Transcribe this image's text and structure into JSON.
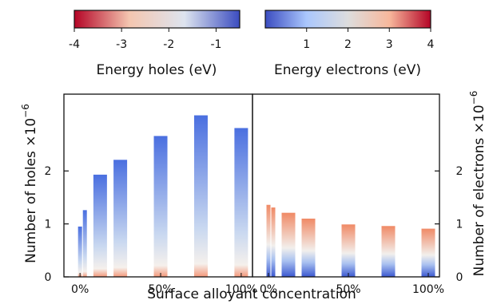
{
  "chart_data": {
    "type": "bar",
    "xlabel": "Surface alloyant concentration",
    "colorbars": [
      {
        "label": "Energy holes (eV)",
        "ticks": [
          "-4",
          "-3",
          "-2",
          "-1"
        ],
        "range": [
          -4,
          -0.5
        ],
        "colors": [
          "#b40426",
          "#f4c6b0",
          "#dde4ef",
          "#3b4cc0"
        ]
      },
      {
        "label": "Energy electrons (eV)",
        "ticks": [
          "1",
          "2",
          "3",
          "4"
        ],
        "range": [
          0,
          4
        ],
        "colors": [
          "#3b4cc0",
          "#aac7fd",
          "#dddddd",
          "#f7b89c",
          "#b40426"
        ]
      }
    ],
    "panels": [
      {
        "ylabel": "Number of holes ×10",
        "ylabel_exp": "−6",
        "y_ticks": [
          "0",
          "1",
          "2"
        ],
        "y_tick_values": [
          0,
          1,
          2
        ],
        "ylim": [
          0,
          3.45
        ],
        "x_tick_labels": [
          "0%",
          "50%",
          "100%"
        ],
        "x_tick_values": [
          0,
          50,
          100
        ],
        "xlim": [
          -10,
          107
        ],
        "bars": [
          {
            "x": 0,
            "value": 0.95
          },
          {
            "x": 3,
            "value": 1.26
          },
          {
            "x": 12.5,
            "value": 1.93
          },
          {
            "x": 25,
            "value": 2.21
          },
          {
            "x": 50,
            "value": 2.66
          },
          {
            "x": 75,
            "value": 3.05
          },
          {
            "x": 100,
            "value": 2.81
          }
        ]
      },
      {
        "ylabel": "Number of electrons ×10",
        "ylabel_exp": "−6",
        "y_ticks": [
          "0",
          "1",
          "2"
        ],
        "y_tick_values": [
          0,
          1,
          2
        ],
        "ylim": [
          0,
          3.45
        ],
        "x_tick_labels": [
          "0%",
          "50%",
          "100%"
        ],
        "x_tick_values": [
          0,
          50,
          100
        ],
        "xlim": [
          -10,
          107
        ],
        "bars": [
          {
            "x": 0,
            "value": 1.36
          },
          {
            "x": 3,
            "value": 1.31
          },
          {
            "x": 12.5,
            "value": 1.21
          },
          {
            "x": 25,
            "value": 1.1
          },
          {
            "x": 50,
            "value": 0.99
          },
          {
            "x": 75,
            "value": 0.96
          },
          {
            "x": 100,
            "value": 0.91
          }
        ]
      }
    ]
  }
}
